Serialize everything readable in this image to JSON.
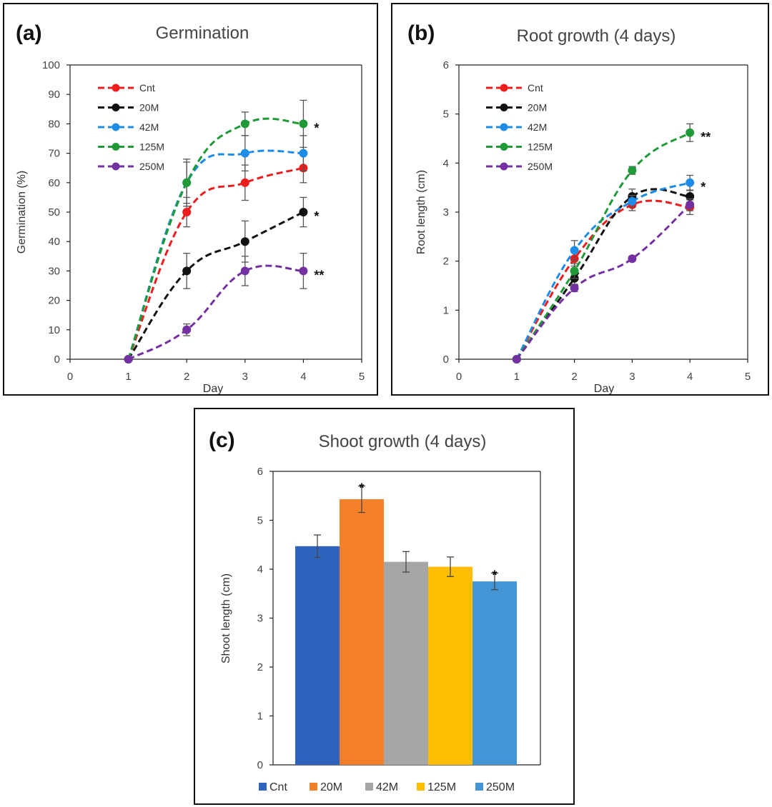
{
  "colors": {
    "Cnt": "#ee1c1c",
    "20M": "#111111",
    "42M": "#1c8ce6",
    "125M": "#1f9a36",
    "250M": "#7330a0",
    "bar_Cnt": "#2e64be",
    "bar_20M": "#f4802a",
    "bar_42M": "#a6a6a6",
    "bar_125M": "#ffbf00",
    "bar_250M": "#4495d6"
  },
  "chart_data": [
    {
      "id": "a",
      "panel_label": "(a)",
      "type": "line",
      "title": "Germination",
      "xlabel": "Day",
      "ylabel": "Germination (%)",
      "xlim": [
        0,
        5
      ],
      "ylim": [
        0,
        100
      ],
      "xticks": [
        "0",
        "1",
        "2",
        "3",
        "4",
        "5"
      ],
      "yticks": [
        "0",
        "10",
        "20",
        "30",
        "40",
        "50",
        "60",
        "70",
        "80",
        "90",
        "100"
      ],
      "x": [
        1,
        2,
        3,
        4
      ],
      "series": [
        {
          "name": "Cnt",
          "values": [
            0,
            50,
            60,
            65
          ],
          "errors": [
            0,
            5,
            6,
            5
          ]
        },
        {
          "name": "20M",
          "values": [
            0,
            30,
            40,
            50
          ],
          "errors": [
            0,
            6,
            7,
            5
          ]
        },
        {
          "name": "42M",
          "values": [
            0,
            60,
            70,
            70
          ],
          "errors": [
            0,
            7,
            6,
            6
          ]
        },
        {
          "name": "125M",
          "values": [
            0,
            60,
            80,
            80
          ],
          "errors": [
            0,
            8,
            4,
            8
          ]
        },
        {
          "name": "250M",
          "values": [
            0,
            10,
            30,
            30
          ],
          "errors": [
            0,
            2,
            5,
            6
          ]
        }
      ],
      "annotations": [
        {
          "text": "*",
          "x": 4,
          "y": 80
        },
        {
          "text": "*",
          "x": 4,
          "y": 50
        },
        {
          "text": "**",
          "x": 4,
          "y": 30
        }
      ],
      "legend": [
        "Cnt",
        "20M",
        "42M",
        "125M",
        "250M"
      ],
      "legend_position": "top-left"
    },
    {
      "id": "b",
      "panel_label": "(b)",
      "type": "line",
      "title": "Root growth (4 days)",
      "xlabel": "Day",
      "ylabel": "Root length (cm)",
      "xlim": [
        0,
        5
      ],
      "ylim": [
        0,
        6
      ],
      "xticks": [
        "0",
        "1",
        "2",
        "3",
        "4",
        "5"
      ],
      "yticks": [
        "0",
        "1",
        "2",
        "3",
        "4",
        "5",
        "6"
      ],
      "x": [
        1,
        2,
        3,
        4
      ],
      "series": [
        {
          "name": "Cnt",
          "values": [
            0,
            2.05,
            3.15,
            3.1
          ],
          "errors": [
            0,
            0.15,
            0.12,
            0.15
          ]
        },
        {
          "name": "20M",
          "values": [
            0,
            1.65,
            3.32,
            3.32
          ],
          "errors": [
            0,
            0.12,
            0.15,
            0.12
          ]
        },
        {
          "name": "42M",
          "values": [
            0,
            2.22,
            3.22,
            3.6
          ],
          "errors": [
            0,
            0.2,
            0.12,
            0.15
          ]
        },
        {
          "name": "125M",
          "values": [
            0,
            1.8,
            3.85,
            4.62
          ],
          "errors": [
            0,
            0.15,
            0.08,
            0.18
          ]
        },
        {
          "name": "250M",
          "values": [
            0,
            1.45,
            2.05,
            3.15
          ],
          "errors": [
            0,
            0.07,
            0.05,
            0.12
          ]
        }
      ],
      "annotations": [
        {
          "text": "**",
          "x": 4,
          "y": 4.62
        },
        {
          "text": "*",
          "x": 4,
          "y": 3.6
        }
      ],
      "legend": [
        "Cnt",
        "20M",
        "42M",
        "125M",
        "250M"
      ],
      "legend_position": "top-left"
    },
    {
      "id": "c",
      "panel_label": "(c)",
      "type": "bar",
      "title": "Shoot growth (4 days)",
      "xlabel": "",
      "ylabel": "Shoot length (cm)",
      "ylim": [
        0,
        6
      ],
      "yticks": [
        "0",
        "1",
        "2",
        "3",
        "4",
        "5",
        "6"
      ],
      "categories": [
        "Cnt",
        "20M",
        "42M",
        "125M",
        "250M"
      ],
      "values": [
        4.47,
        5.43,
        4.15,
        4.05,
        3.75
      ],
      "errors": [
        0.23,
        0.27,
        0.21,
        0.2,
        0.17
      ],
      "annotations": [
        {
          "text": "*",
          "category": "20M"
        },
        {
          "text": "*",
          "category": "250M"
        }
      ],
      "legend": [
        "Cnt",
        "20M",
        "42M",
        "125M",
        "250M"
      ],
      "legend_position": "bottom"
    }
  ]
}
